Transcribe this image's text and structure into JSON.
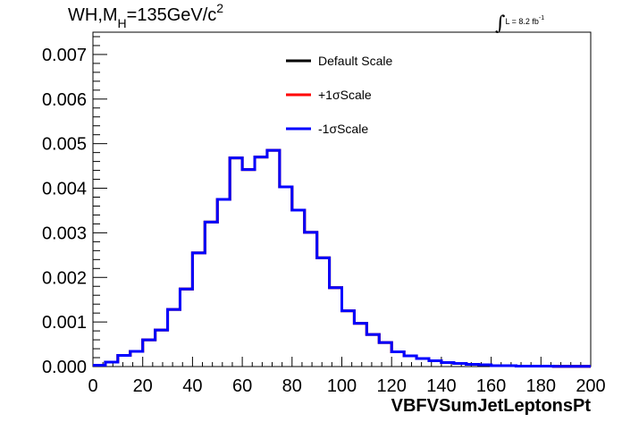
{
  "header": {
    "title_main": "WH,M",
    "title_sub": "H",
    "title_rest": "=135GeV/c",
    "title_sup": "2",
    "lumi_integral": "∫",
    "lumi_text": "L = 8.2 fb",
    "lumi_sup": "-1"
  },
  "colors": {
    "default": "#000000",
    "plus": "#ff0000",
    "minus": "#0000ff",
    "axis": "#000000",
    "background": "#ffffff"
  },
  "chart_data": {
    "type": "line",
    "style": "step-histogram",
    "title": "WH,MH=135GeV/c2",
    "xlabel": "VBFVSumJetLeptonsPt",
    "ylabel": "",
    "xlim": [
      0,
      200
    ],
    "ylim": [
      0,
      0.0075
    ],
    "x_ticks": [
      0,
      20,
      40,
      60,
      80,
      100,
      120,
      140,
      160,
      180,
      200
    ],
    "x_tick_labels": [
      "0",
      "20",
      "40",
      "60",
      "80",
      "100",
      "120",
      "140",
      "160",
      "180",
      "200"
    ],
    "y_ticks": [
      0,
      0.001,
      0.002,
      0.003,
      0.004,
      0.005,
      0.006,
      0.007
    ],
    "y_tick_labels": [
      "0.000",
      "0.001",
      "0.002",
      "0.003",
      "0.004",
      "0.005",
      "0.006",
      "0.007"
    ],
    "grid": false,
    "legend_position": "top-right",
    "bin_edges": [
      0,
      5,
      10,
      15,
      20,
      25,
      30,
      35,
      40,
      45,
      50,
      55,
      60,
      65,
      70,
      75,
      80,
      85,
      90,
      95,
      100,
      105,
      110,
      115,
      120,
      125,
      130,
      135,
      140,
      145,
      150,
      155,
      160,
      165,
      170,
      175,
      180,
      185,
      190,
      195,
      200
    ],
    "series": [
      {
        "name": "Default Scale",
        "color": "#000000",
        "values": [
          3e-05,
          0.0001,
          0.00025,
          0.00034,
          0.0006,
          0.00082,
          0.00128,
          0.00174,
          0.00255,
          0.00324,
          0.00375,
          0.00468,
          0.00442,
          0.0047,
          0.00485,
          0.00403,
          0.00351,
          0.00301,
          0.00244,
          0.00177,
          0.00125,
          0.00097,
          0.00072,
          0.00054,
          0.00033,
          0.00024,
          0.00018,
          0.00013,
          9e-05,
          7e-05,
          5e-05,
          4e-05,
          2e-05,
          2e-05,
          1e-05,
          1e-05,
          1e-05,
          5e-06,
          5e-06,
          5e-06
        ]
      },
      {
        "name": "+1σScale",
        "color": "#ff0000",
        "values": [
          3e-05,
          0.0001,
          0.00025,
          0.00034,
          0.0006,
          0.00082,
          0.00128,
          0.00174,
          0.00255,
          0.00324,
          0.00375,
          0.00468,
          0.00442,
          0.0047,
          0.00485,
          0.00403,
          0.00351,
          0.00301,
          0.00244,
          0.00177,
          0.00125,
          0.00097,
          0.00072,
          0.00054,
          0.00033,
          0.00024,
          0.00018,
          0.00013,
          9e-05,
          7e-05,
          5e-05,
          4e-05,
          2e-05,
          2e-05,
          1e-05,
          1e-05,
          1e-05,
          5e-06,
          5e-06,
          5e-06
        ]
      },
      {
        "name": "-1σScale",
        "color": "#0000ff",
        "values": [
          3e-05,
          0.0001,
          0.00025,
          0.00034,
          0.0006,
          0.00082,
          0.00128,
          0.00174,
          0.00255,
          0.00324,
          0.00375,
          0.00468,
          0.00442,
          0.0047,
          0.00485,
          0.00403,
          0.00351,
          0.00301,
          0.00244,
          0.00177,
          0.00125,
          0.00097,
          0.00072,
          0.00054,
          0.00033,
          0.00024,
          0.00018,
          0.00013,
          9e-05,
          7e-05,
          5e-05,
          4e-05,
          2e-05,
          2e-05,
          1e-05,
          1e-05,
          1e-05,
          5e-06,
          5e-06,
          5e-06
        ]
      }
    ]
  }
}
